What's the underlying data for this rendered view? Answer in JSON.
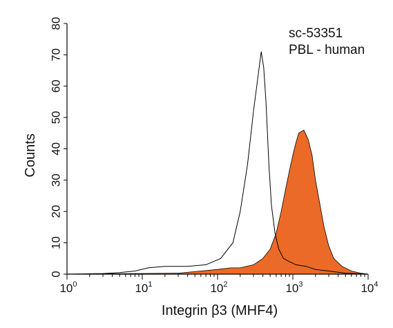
{
  "chart_data": {
    "type": "area",
    "title": "",
    "xlabel": "Integrin β3 (MHF4)",
    "ylabel": "Counts",
    "x_scale": "log",
    "xlim": [
      1,
      10000
    ],
    "ylim": [
      0,
      80
    ],
    "x_ticks": [
      {
        "value": 1,
        "base": "10",
        "exp": "0"
      },
      {
        "value": 10,
        "base": "10",
        "exp": "1"
      },
      {
        "value": 100,
        "base": "10",
        "exp": "2"
      },
      {
        "value": 1000,
        "base": "10",
        "exp": "3"
      },
      {
        "value": 10000,
        "base": "10",
        "exp": "4"
      }
    ],
    "y_ticks": [
      0,
      10,
      20,
      30,
      40,
      50,
      60,
      70,
      80
    ],
    "annotations": [
      "sc-53351",
      "PBL - human"
    ],
    "grid": false,
    "series": [
      {
        "style": "outline",
        "color": "#000000",
        "x": [
          1,
          3,
          5,
          8,
          12,
          20,
          40,
          70,
          110,
          160,
          200,
          250,
          300,
          340,
          380,
          410,
          440,
          480,
          520,
          580,
          650,
          750,
          900,
          1100,
          1500,
          2000,
          3000,
          5000,
          10000
        ],
        "y": [
          0,
          0.2,
          0.5,
          1,
          2,
          2.5,
          2.5,
          3,
          5,
          10,
          20,
          35,
          52,
          62,
          71,
          66,
          55,
          35,
          22,
          13,
          8,
          5,
          4,
          3,
          2.5,
          1.5,
          1,
          0.3,
          0
        ]
      },
      {
        "style": "filled",
        "color": "#EB6A28",
        "x": [
          1,
          30,
          60,
          100,
          150,
          200,
          300,
          400,
          500,
          600,
          700,
          800,
          900,
          1000,
          1100,
          1200,
          1400,
          1600,
          1800,
          2000,
          2300,
          2600,
          3000,
          3500,
          4500,
          6000,
          8000,
          10000
        ],
        "y": [
          0,
          0.3,
          1,
          1.5,
          2,
          2,
          3,
          5,
          8,
          13,
          20,
          27,
          33,
          38,
          42,
          45,
          46,
          43,
          38,
          30,
          22,
          15,
          9,
          5,
          2.5,
          1,
          0.3,
          0
        ]
      }
    ]
  }
}
